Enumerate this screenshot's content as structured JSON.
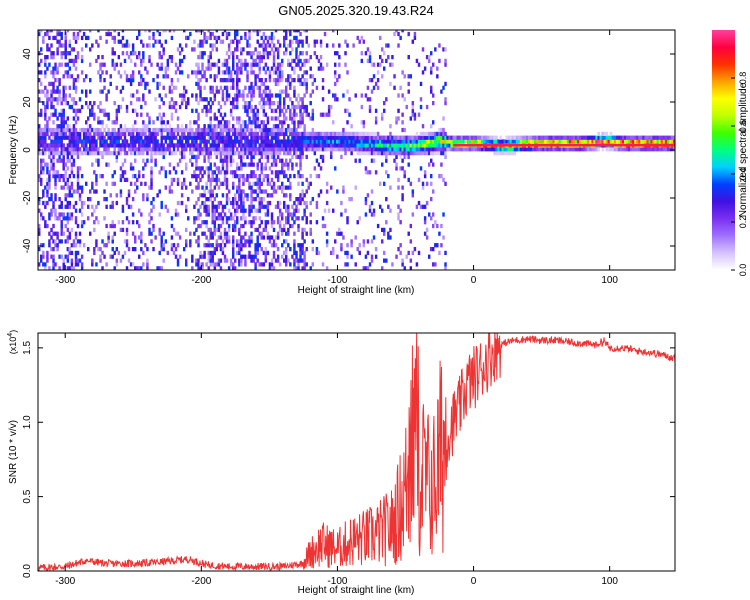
{
  "figure": {
    "title": "GN05.2025.320.19.43.R24"
  },
  "chart_data": [
    {
      "type": "heatmap",
      "title": "GN05.2025.320.19.43.R24",
      "xlabel": "Height of straight line (km)",
      "ylabel": "Frequency (Hz)",
      "xlim": [
        -320,
        148
      ],
      "ylim": [
        -50,
        50
      ],
      "xticks": [
        -300,
        -200,
        -100,
        0,
        100
      ],
      "yticks": [
        -40,
        -20,
        0,
        20,
        40
      ],
      "colorbar": {
        "label": "Normalized spectral amplitude",
        "range": [
          0,
          1
        ],
        "ticks": [
          "0.0",
          "0.2",
          "0.4",
          "0.6",
          "0.8"
        ],
        "tick_values": [
          0,
          0.2,
          0.4,
          0.6,
          0.8
        ],
        "colormap": [
          "#ffffff",
          "#d6c2ff",
          "#a070ff",
          "#7a30f0",
          "#4010e0",
          "#0040ff",
          "#00d0ff",
          "#00ff80",
          "#40ff00",
          "#c0ff00",
          "#ffff00",
          "#ffa000",
          "#ff3000",
          "#ff0040",
          "#ff40a0"
        ]
      },
      "ridge": {
        "x": [
          -125,
          -100,
          -80,
          -60,
          -45,
          -35,
          -25,
          -15,
          0,
          20,
          50,
          80,
          95,
          110,
          148
        ],
        "y": [
          3,
          3,
          2,
          1,
          1,
          2,
          3,
          2,
          2,
          1,
          2,
          2,
          3,
          2,
          2
        ],
        "amplitude": [
          0.35,
          0.4,
          0.45,
          0.5,
          0.55,
          0.6,
          0.65,
          0.75,
          0.8,
          0.85,
          0.9,
          0.9,
          0.85,
          0.9,
          0.9
        ]
      },
      "noise_regions": [
        {
          "x": [
            -320,
            -290
          ],
          "level": 0.4
        },
        {
          "x": [
            -290,
            -205
          ],
          "level": 0.2
        },
        {
          "x": [
            -205,
            -123
          ],
          "level": 0.45
        },
        {
          "x": [
            -123,
            -20
          ],
          "level": 0.12
        }
      ]
    },
    {
      "type": "line",
      "xlabel": "Height of straight line (km)",
      "ylabel": "SNR (10 * v/v)",
      "y_multiplier_label": "(x10",
      "y_multiplier_exp": "4",
      "y_multiplier_close": ")",
      "xlim": [
        -320,
        148
      ],
      "ylim": [
        0,
        1.6
      ],
      "xticks": [
        -300,
        -200,
        -100,
        0,
        100
      ],
      "yticks": [
        "0.0",
        "0.5",
        "1.0",
        "1.5"
      ],
      "ytick_values": [
        0,
        0.5,
        1.0,
        1.5
      ],
      "color": "#ee3333",
      "series": [
        {
          "x": [
            -320,
            -300,
            -285,
            -270,
            -250,
            -230,
            -210,
            -195,
            -180,
            -160,
            -140,
            -126,
            -120,
            -112,
            -100,
            -90,
            -80,
            -70,
            -60,
            -55,
            -50,
            -45,
            -43,
            -40,
            -35,
            -30,
            -25,
            -20,
            -15,
            -10,
            -5,
            0,
            5,
            10,
            15,
            20,
            25,
            30,
            40,
            50,
            60,
            70,
            80,
            90,
            96,
            100,
            110,
            120,
            130,
            140,
            148
          ],
          "y": [
            0.02,
            0.03,
            0.07,
            0.05,
            0.05,
            0.06,
            0.08,
            0.04,
            0.03,
            0.03,
            0.03,
            0.05,
            0.12,
            0.18,
            0.15,
            0.2,
            0.22,
            0.25,
            0.3,
            0.4,
            0.55,
            0.75,
            1.3,
            0.7,
            0.6,
            0.55,
            0.75,
            0.9,
            1.0,
            1.1,
            1.25,
            1.3,
            1.35,
            1.42,
            1.48,
            1.52,
            1.54,
            1.55,
            1.56,
            1.55,
            1.55,
            1.54,
            1.53,
            1.52,
            1.55,
            1.5,
            1.5,
            1.48,
            1.47,
            1.45,
            1.43
          ]
        }
      ]
    }
  ]
}
